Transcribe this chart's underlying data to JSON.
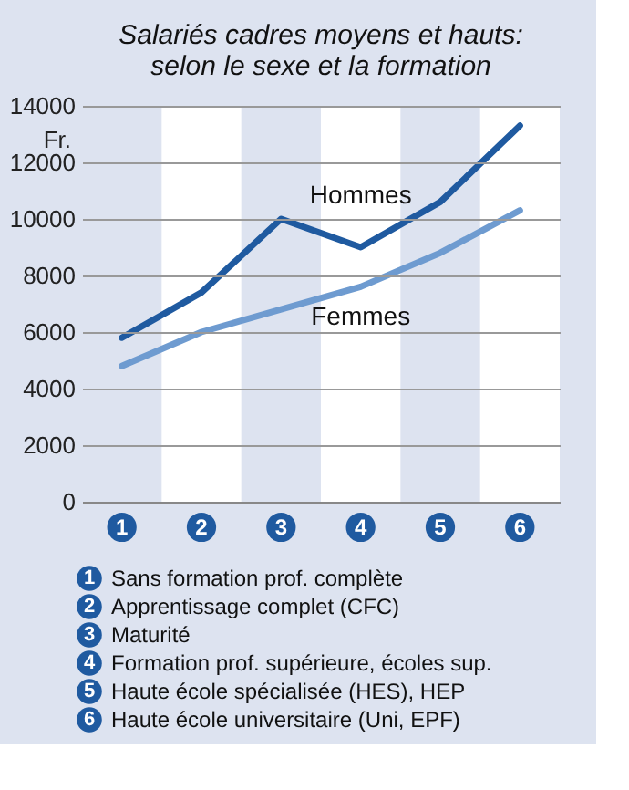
{
  "chart_data": {
    "type": "line",
    "title": "Salariés cadres moyens et hauts:",
    "subtitle": "selon le sexe et la formation",
    "ylabel": "Fr.",
    "categories": [
      "1",
      "2",
      "3",
      "4",
      "5",
      "6"
    ],
    "series": [
      {
        "name": "Hommes",
        "color": "#1f5aa0",
        "values": [
          5800,
          7400,
          10000,
          9000,
          10600,
          13300
        ]
      },
      {
        "name": "Femmes",
        "color": "#6e9bd0",
        "values": [
          4800,
          6000,
          6800,
          7600,
          8800,
          10300
        ]
      }
    ],
    "ylim": [
      0,
      14000
    ],
    "yticks": [
      0,
      2000,
      4000,
      6000,
      8000,
      10000,
      12000,
      14000
    ],
    "grid": "y",
    "legend": false,
    "marker": "none",
    "line_style": "solid",
    "bands": [
      {
        "axis": "x",
        "from": "1",
        "to": "1",
        "color": "#dde3f0"
      },
      {
        "axis": "x",
        "from": "3",
        "to": "3",
        "color": "#dde3f0"
      },
      {
        "axis": "x",
        "from": "5",
        "to": "5",
        "color": "#dde3f0"
      }
    ],
    "annotations": [
      "Sans formation prof. complète",
      "Apprentissage complet (CFC)",
      "Maturité",
      "Formation prof. supérieure, écoles sup.",
      "Haute école spécialisée (HES), HEP",
      "Haute école universitaire (Uni, EPF)"
    ]
  }
}
